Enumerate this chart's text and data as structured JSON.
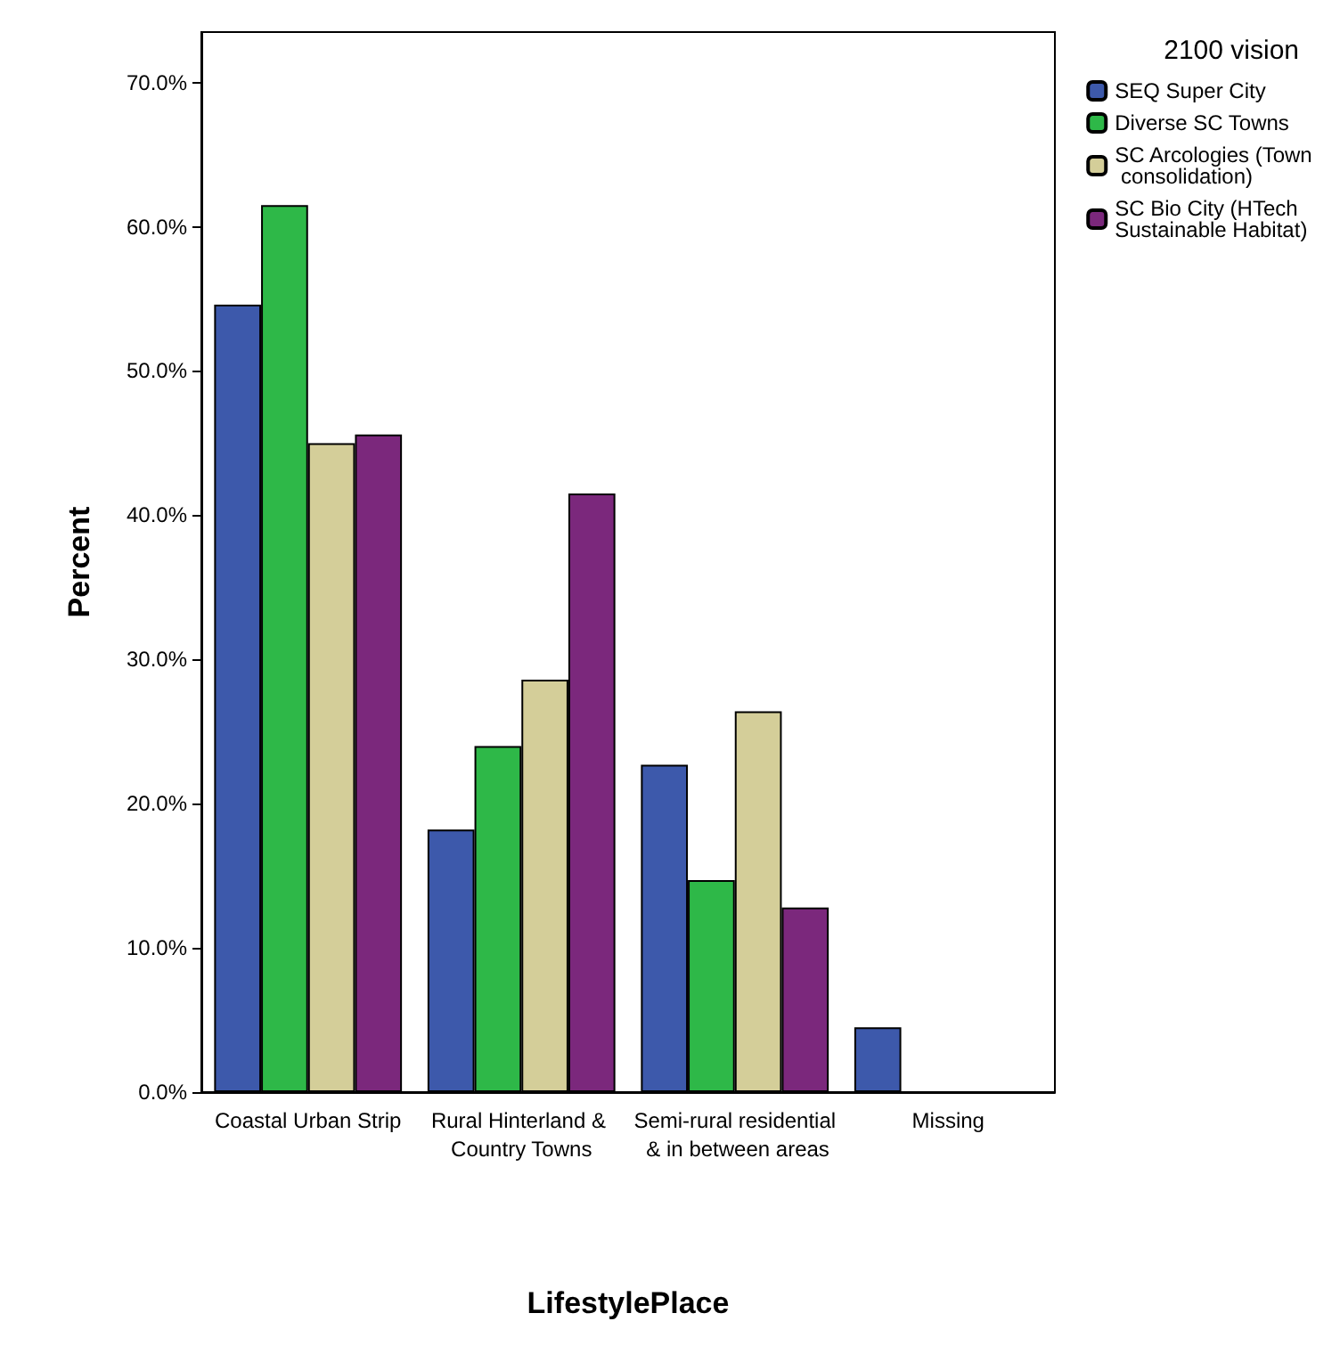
{
  "chart_data": {
    "type": "bar",
    "xlabel": "LifestylePlace",
    "ylabel": "Percent",
    "legend_title": "2100 vision",
    "legend": "top right",
    "grid": false,
    "categories": [
      "Coastal Urban Strip",
      "Rural Hinterland & Country Towns",
      "Semi-rural residential & in between areas",
      "Missing"
    ],
    "ylim": [
      0,
      73.5
    ],
    "yticks": [
      {
        "value": 0,
        "label": "0.0%"
      },
      {
        "value": 10,
        "label": "10.0%"
      },
      {
        "value": 20,
        "label": "20.0%"
      },
      {
        "value": 30,
        "label": "30.0%"
      },
      {
        "value": 40,
        "label": "40.0%"
      },
      {
        "value": 50,
        "label": "50.0%"
      },
      {
        "value": 60,
        "label": "60.0%"
      },
      {
        "value": 70,
        "label": "70.0%"
      }
    ],
    "series": [
      {
        "name": "SEQ Super City",
        "color": "#3d59ab",
        "values": [
          54.6,
          18.2,
          22.7,
          4.5
        ]
      },
      {
        "name": "Diverse SC Towns",
        "color": "#2eb848",
        "values": [
          61.5,
          24.0,
          14.7,
          null
        ]
      },
      {
        "name": "SC Arcologies (Town consolidation)",
        "color": "#d4ce99",
        "values": [
          45.0,
          28.6,
          26.4,
          null
        ]
      },
      {
        "name": "SC Bio City (HTech Sustainable Habitat)",
        "color": "#7b287c",
        "values": [
          45.6,
          41.5,
          12.8,
          null
        ]
      }
    ]
  }
}
